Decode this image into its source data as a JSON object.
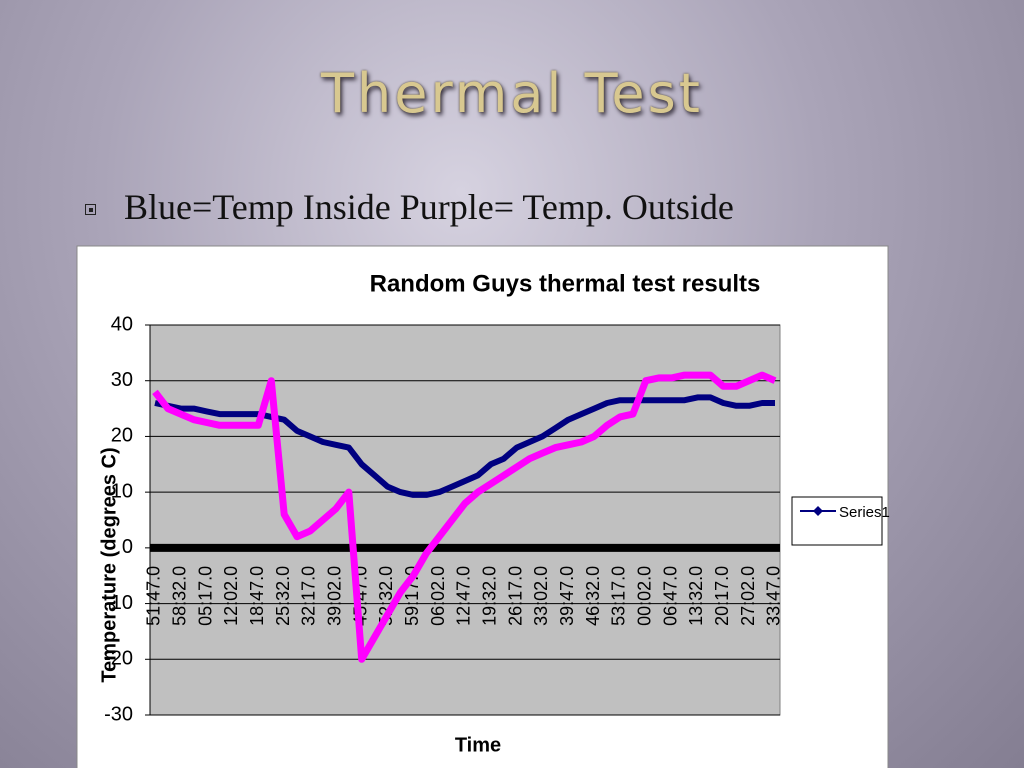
{
  "slide": {
    "title": "Thermal Test",
    "bullet": "Blue=Temp Inside Purple= Temp. Outside"
  },
  "chart_data": {
    "type": "line",
    "title": "Random Guys thermal test results",
    "x_label": "Time",
    "y_label": "Temperature (degrees C)",
    "categories": [
      "51:47.0",
      null,
      "58:32.0",
      null,
      "05:17.0",
      null,
      "12:02.0",
      null,
      "18:47.0",
      null,
      "25:32.0",
      null,
      "32:17.0",
      null,
      "39:02.0",
      null,
      "45:47.0",
      null,
      "52:32.0",
      null,
      "59:17.0",
      null,
      "06:02.0",
      null,
      "12:47.0",
      null,
      "19:32.0",
      null,
      "26:17.0",
      null,
      "33:02.0",
      null,
      "39:47.0",
      null,
      "46:32.0",
      null,
      "53:17.0",
      null,
      "00:02.0",
      null,
      "06:47.0",
      null,
      "13:32.0",
      null,
      "20:17.0",
      null,
      "27:02.0",
      null,
      "33:47.0"
    ],
    "series": [
      {
        "name": "Series1",
        "color": "#000080",
        "values": [
          26,
          25.5,
          25,
          25,
          24.5,
          24,
          24,
          24,
          24,
          23.5,
          23,
          21,
          20,
          19,
          18.5,
          18,
          15,
          13,
          11,
          10,
          9.5,
          9.5,
          10,
          11,
          12,
          13,
          15,
          16,
          18,
          19,
          20,
          21.5,
          23,
          24,
          25,
          26,
          26.5,
          26.5,
          26.5,
          26.5,
          26.5,
          26.5,
          27,
          27,
          26,
          25.5,
          25.5,
          26,
          26
        ]
      },
      {
        "color": "#ff00ff",
        "values": [
          28,
          25,
          24,
          23,
          22.5,
          22,
          22,
          22,
          22,
          30,
          6,
          2,
          3,
          5,
          7,
          10,
          -20,
          -16,
          -12,
          -8,
          -5,
          -1,
          2,
          5,
          8,
          10,
          11.5,
          13,
          14.5,
          16,
          17,
          18,
          18.5,
          19,
          20,
          22,
          23.5,
          24,
          30,
          30.5,
          30.5,
          31,
          31,
          31,
          29,
          29,
          30,
          31,
          30
        ]
      }
    ],
    "ylim": [
      -30,
      40
    ],
    "yticks": [
      -30,
      -20,
      -10,
      0,
      10,
      20,
      30,
      40
    ],
    "grid": true,
    "legend": "right"
  }
}
